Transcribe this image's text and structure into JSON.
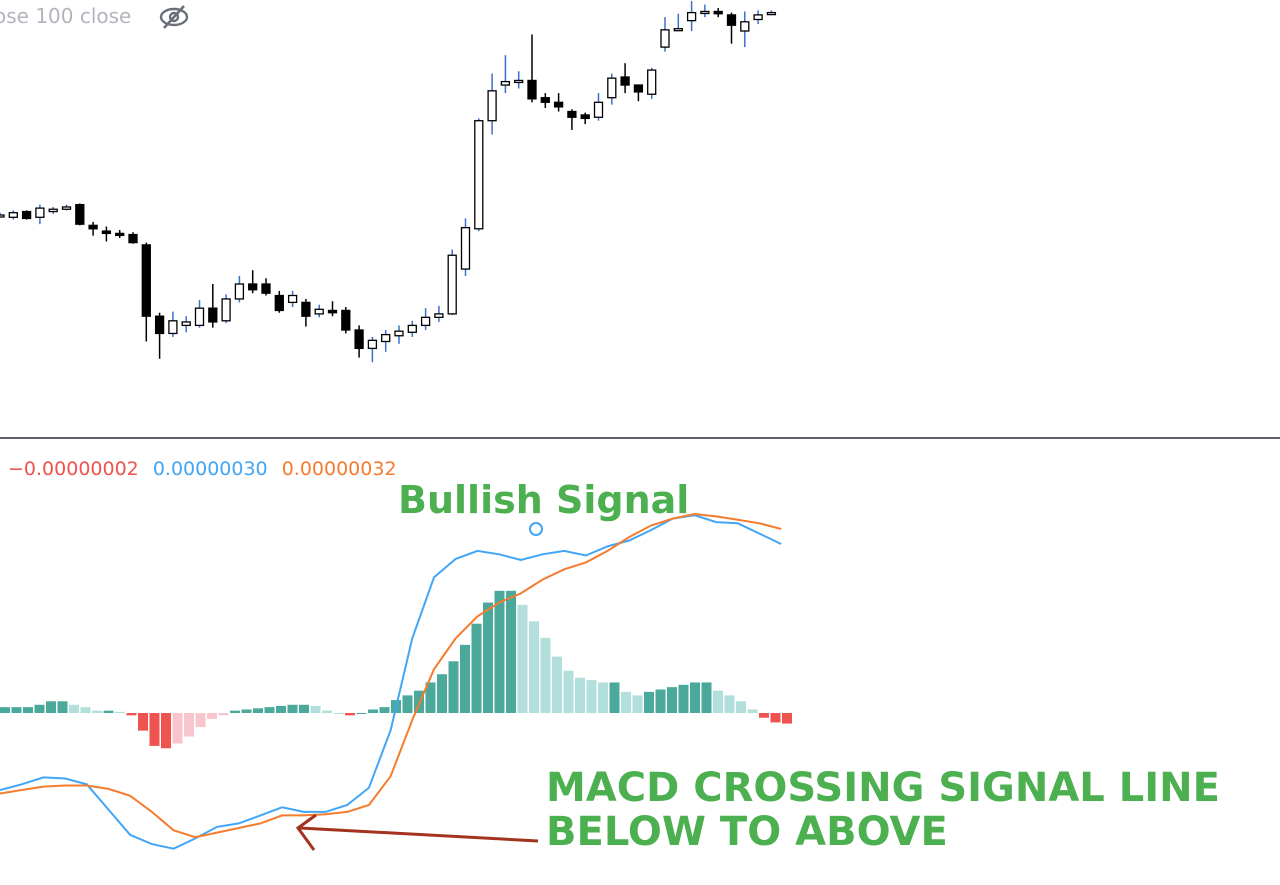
{
  "header": {
    "legend_text": "ose 100 close",
    "eye_icon": "eye-crossed-icon"
  },
  "macd_legend": {
    "histogram": "−0.00000002",
    "macd": "0.00000030",
    "signal": "0.00000032"
  },
  "annotations": {
    "bullish": "Bullish Signal",
    "cross_line1": "MACD CROSSING SIGNAL LINE",
    "cross_line2": "BELOW TO ABOVE"
  },
  "colors": {
    "macd_line": "#42a5f5",
    "signal_line": "#f57c2e",
    "hist_pos_strong": "#4aa99a",
    "hist_pos_weak": "#b2dfdb",
    "hist_neg_strong": "#ef5350",
    "hist_neg_weak": "#f8c5cc",
    "candle_up": "#ffffffff",
    "candle_down": "#000000",
    "wick": "#3a6fd0",
    "annotation": "#4caf50",
    "arrow": "#a3321f",
    "separator": "#5d606b",
    "hist_negative_label": "#ef5350"
  },
  "chart_data": [
    {
      "type": "candlestick",
      "note_units": "price relative units (price axis not shown)",
      "candles": [
        {
          "o": 0.0,
          "c": 0.0,
          "h": 0.2,
          "l": -0.2
        },
        {
          "o": -0.2,
          "c": 0.2,
          "h": 0.4,
          "l": -0.4
        },
        {
          "o": 0.3,
          "c": -0.3,
          "h": 0.4,
          "l": -0.4
        },
        {
          "o": -0.2,
          "c": 0.6,
          "h": 0.9,
          "l": -0.8
        },
        {
          "o": 0.3,
          "c": 0.5,
          "h": 0.7,
          "l": 0.1
        },
        {
          "o": 0.5,
          "c": 0.7,
          "h": 0.9,
          "l": 0.4
        },
        {
          "o": 0.9,
          "c": -0.8,
          "h": 1.0,
          "l": -0.9
        },
        {
          "o": -0.9,
          "c": -1.2,
          "h": -0.6,
          "l": -1.8
        },
        {
          "o": -1.4,
          "c": -1.6,
          "h": -1.0,
          "l": -2.3
        },
        {
          "o": -1.6,
          "c": -1.7,
          "h": -1.3,
          "l": -2.0
        },
        {
          "o": -1.7,
          "c": -2.4,
          "h": -1.5,
          "l": -2.5
        },
        {
          "o": -2.6,
          "c": -8.8,
          "h": -2.4,
          "l": -11.0
        },
        {
          "o": -8.8,
          "c": -10.3,
          "h": -8.5,
          "l": -12.5
        },
        {
          "o": -10.3,
          "c": -9.2,
          "h": -8.4,
          "l": -10.6
        },
        {
          "o": -9.6,
          "c": -9.3,
          "h": -8.8,
          "l": -10.2
        },
        {
          "o": -9.6,
          "c": -8.1,
          "h": -7.4,
          "l": -9.8
        },
        {
          "o": -8.1,
          "c": -9.3,
          "h": -6.0,
          "l": -9.8
        },
        {
          "o": -9.2,
          "c": -7.3,
          "h": -6.9,
          "l": -9.4
        },
        {
          "o": -7.3,
          "c": -6.0,
          "h": -5.3,
          "l": -7.6
        },
        {
          "o": -6.0,
          "c": -6.5,
          "h": -4.8,
          "l": -6.8
        },
        {
          "o": -6.0,
          "c": -6.8,
          "h": -5.5,
          "l": -7.0
        },
        {
          "o": -7.0,
          "c": -8.3,
          "h": -6.6,
          "l": -8.5
        },
        {
          "o": -7.6,
          "c": -7.0,
          "h": -6.6,
          "l": -8.0
        },
        {
          "o": -7.6,
          "c": -8.8,
          "h": -7.3,
          "l": -9.7
        },
        {
          "o": -8.6,
          "c": -8.2,
          "h": -7.8,
          "l": -8.9
        },
        {
          "o": -8.3,
          "c": -8.5,
          "h": -7.5,
          "l": -8.8
        },
        {
          "o": -8.3,
          "c": -10.0,
          "h": -8.0,
          "l": -10.3
        },
        {
          "o": -10.0,
          "c": -11.6,
          "h": -9.6,
          "l": -12.4
        },
        {
          "o": -11.6,
          "c": -10.9,
          "h": -10.6,
          "l": -12.8
        },
        {
          "o": -11.0,
          "c": -10.4,
          "h": -10.0,
          "l": -11.9
        },
        {
          "o": -10.5,
          "c": -10.1,
          "h": -9.6,
          "l": -11.2
        },
        {
          "o": -10.2,
          "c": -9.6,
          "h": -9.2,
          "l": -10.6
        },
        {
          "o": -9.6,
          "c": -8.9,
          "h": -8.1,
          "l": -10.0
        },
        {
          "o": -8.9,
          "c": -8.6,
          "h": -7.9,
          "l": -9.3
        },
        {
          "o": -8.6,
          "c": -3.5,
          "h": -3.0,
          "l": -8.7
        },
        {
          "o": -4.7,
          "c": -1.1,
          "h": -0.3,
          "l": -5.3
        },
        {
          "o": -1.2,
          "c": 8.2,
          "h": 8.4,
          "l": -1.4
        },
        {
          "o": 8.2,
          "c": 10.8,
          "h": 12.3,
          "l": 7.0
        },
        {
          "o": 11.3,
          "c": 11.6,
          "h": 13.9,
          "l": 10.6
        },
        {
          "o": 11.6,
          "c": 11.7,
          "h": 12.5,
          "l": 11.0
        },
        {
          "o": 11.7,
          "c": 10.1,
          "h": 15.7,
          "l": 9.8
        },
        {
          "o": 10.2,
          "c": 9.8,
          "h": 10.6,
          "l": 9.3
        },
        {
          "o": 9.8,
          "c": 9.4,
          "h": 10.6,
          "l": 9.0
        },
        {
          "o": 9.0,
          "c": 8.5,
          "h": 9.2,
          "l": 7.4
        },
        {
          "o": 8.7,
          "c": 8.4,
          "h": 8.9,
          "l": 7.9
        },
        {
          "o": 8.5,
          "c": 9.8,
          "h": 10.6,
          "l": 8.2
        },
        {
          "o": 10.2,
          "c": 11.9,
          "h": 12.3,
          "l": 9.6
        },
        {
          "o": 12.0,
          "c": 11.3,
          "h": 13.2,
          "l": 10.6
        },
        {
          "o": 11.3,
          "c": 10.7,
          "h": 11.3,
          "l": 9.9
        },
        {
          "o": 10.5,
          "c": 12.6,
          "h": 12.8,
          "l": 10.1
        },
        {
          "o": 14.6,
          "c": 16.1,
          "h": 17.2,
          "l": 14.2
        },
        {
          "o": 16.2,
          "c": 16.2,
          "h": 17.5,
          "l": 16.0
        },
        {
          "o": 16.9,
          "c": 17.6,
          "h": 18.6,
          "l": 16.0
        },
        {
          "o": 17.6,
          "c": 17.7,
          "h": 18.3,
          "l": 17.2
        },
        {
          "o": 17.7,
          "c": 17.5,
          "h": 18.0,
          "l": 17.2
        },
        {
          "o": 17.4,
          "c": 16.5,
          "h": 17.6,
          "l": 14.9
        },
        {
          "o": 16.0,
          "c": 16.8,
          "h": 17.7,
          "l": 14.6
        },
        {
          "o": 17.0,
          "c": 17.4,
          "h": 17.8,
          "l": 16.6
        },
        {
          "o": 17.5,
          "c": 17.6,
          "h": 17.8,
          "l": 17.4
        }
      ]
    },
    {
      "type": "bar",
      "role": "macd-histogram",
      "values": [
        0.25,
        0.25,
        0.25,
        0.35,
        0.5,
        0.5,
        0.35,
        0.25,
        0.1,
        0.1,
        0.05,
        -0.1,
        -0.75,
        -1.4,
        -1.5,
        -1.3,
        -1.0,
        -0.6,
        -0.25,
        -0.1,
        0.1,
        0.15,
        0.2,
        0.25,
        0.3,
        0.35,
        0.35,
        0.3,
        0.1,
        0.0,
        -0.1,
        0.0,
        0.15,
        0.25,
        0.55,
        0.75,
        0.95,
        1.3,
        1.65,
        2.2,
        2.9,
        3.8,
        4.7,
        5.2,
        5.2,
        4.6,
        3.9,
        3.2,
        2.4,
        1.8,
        1.5,
        1.4,
        1.3,
        1.3,
        0.9,
        0.75,
        0.9,
        1.0,
        1.1,
        1.2,
        1.3,
        1.3,
        0.95,
        0.75,
        0.5,
        0.15,
        -0.2,
        -0.4,
        -0.45
      ]
    },
    {
      "type": "line",
      "series": [
        {
          "name": "MACD",
          "values": [
            -6.7,
            -6.2,
            -5.6,
            -5.7,
            -6.2,
            -8.4,
            -10.6,
            -11.4,
            -11.8,
            -10.9,
            -9.9,
            -9.6,
            -8.9,
            -8.2,
            -8.6,
            -8.6,
            -8.0,
            -6.5,
            -1.5,
            6.5,
            11.8,
            13.4,
            14.1,
            13.8,
            13.3,
            13.8,
            14.1,
            13.7,
            14.5,
            15.0,
            15.9,
            16.9,
            17.2,
            16.6,
            16.5,
            15.6,
            14.7
          ]
        },
        {
          "name": "Signal",
          "values": [
            -7.0,
            -6.7,
            -6.4,
            -6.3,
            -6.3,
            -6.6,
            -7.2,
            -8.6,
            -10.2,
            -10.8,
            -10.4,
            -10.0,
            -9.6,
            -8.9,
            -8.9,
            -8.8,
            -8.6,
            -8.0,
            -5.5,
            -0.6,
            3.8,
            6.5,
            8.4,
            9.6,
            10.4,
            11.6,
            12.5,
            13.1,
            14.1,
            15.3,
            16.3,
            16.9,
            17.3,
            17.1,
            16.8,
            16.5,
            16.0
          ]
        }
      ]
    }
  ]
}
